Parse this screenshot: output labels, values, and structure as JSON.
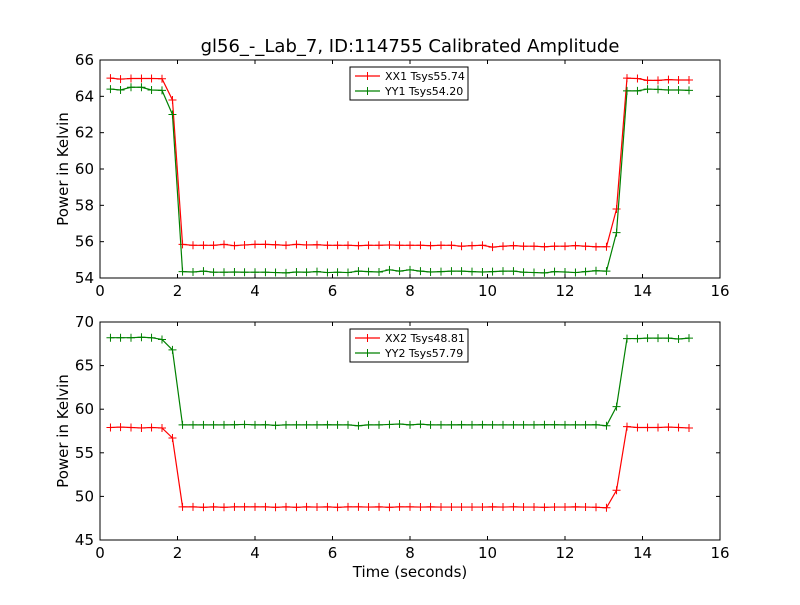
{
  "title": "gl56_-_Lab_7, ID:114755 Calibrated Amplitude",
  "colors": {
    "red": "#ff0000",
    "green": "#008000",
    "axes": "#000000",
    "background": "#ffffff"
  },
  "chart_data": [
    {
      "type": "line",
      "title": "gl56_-_Lab_7, ID:114755 Calibrated Amplitude",
      "xlabel": "",
      "ylabel": "Power in Kelvin",
      "xlim": [
        0,
        16
      ],
      "ylim": [
        54,
        66
      ],
      "xticks": [
        0,
        2,
        4,
        6,
        8,
        10,
        12,
        14,
        16
      ],
      "yticks": [
        54,
        56,
        58,
        60,
        62,
        64,
        66
      ],
      "grid": false,
      "legend": "top-center",
      "x": [
        0.27,
        0.53,
        0.8,
        1.07,
        1.33,
        1.6,
        1.87,
        2.13,
        2.4,
        2.67,
        2.93,
        3.2,
        3.47,
        3.73,
        4.0,
        4.27,
        4.53,
        4.8,
        5.07,
        5.33,
        5.6,
        5.87,
        6.13,
        6.4,
        6.67,
        6.93,
        7.2,
        7.47,
        7.73,
        8.0,
        8.27,
        8.53,
        8.8,
        9.07,
        9.33,
        9.6,
        9.87,
        10.13,
        10.4,
        10.67,
        10.93,
        11.2,
        11.47,
        11.73,
        12.0,
        12.27,
        12.53,
        12.8,
        13.07,
        13.33,
        13.6,
        13.87,
        14.13,
        14.4,
        14.67,
        14.93,
        15.2
      ],
      "series": [
        {
          "name": "XX1 Tsys55.74",
          "color": "#ff0000",
          "values": [
            65.0,
            64.95,
            64.98,
            64.98,
            64.98,
            64.97,
            63.8,
            55.85,
            55.8,
            55.8,
            55.8,
            55.85,
            55.78,
            55.82,
            55.85,
            55.85,
            55.83,
            55.8,
            55.85,
            55.82,
            55.83,
            55.8,
            55.8,
            55.8,
            55.78,
            55.8,
            55.8,
            55.82,
            55.8,
            55.8,
            55.8,
            55.78,
            55.8,
            55.8,
            55.75,
            55.78,
            55.8,
            55.7,
            55.75,
            55.78,
            55.75,
            55.75,
            55.72,
            55.75,
            55.75,
            55.78,
            55.75,
            55.72,
            55.72,
            57.8,
            65.0,
            64.98,
            64.88,
            64.88,
            64.92,
            64.9,
            64.9
          ]
        },
        {
          "name": "YY1 Tsys54.20",
          "color": "#008000",
          "values": [
            64.4,
            64.35,
            64.5,
            64.5,
            64.35,
            64.33,
            63.0,
            54.35,
            54.33,
            54.38,
            54.32,
            54.32,
            54.33,
            54.32,
            54.32,
            54.32,
            54.3,
            54.28,
            54.33,
            54.32,
            54.35,
            54.3,
            54.32,
            54.3,
            54.38,
            54.35,
            54.33,
            54.45,
            54.38,
            54.45,
            54.38,
            54.33,
            54.35,
            54.38,
            54.38,
            54.35,
            54.33,
            54.35,
            54.38,
            54.38,
            54.32,
            54.3,
            54.28,
            54.35,
            54.33,
            54.3,
            54.35,
            54.4,
            54.38,
            56.5,
            64.3,
            64.3,
            64.4,
            64.38,
            64.35,
            64.35,
            64.33
          ]
        }
      ]
    },
    {
      "type": "line",
      "title": "",
      "xlabel": "Time (seconds)",
      "ylabel": "Power in Kelvin",
      "xlim": [
        0,
        16
      ],
      "ylim": [
        45,
        70
      ],
      "xticks": [
        0,
        2,
        4,
        6,
        8,
        10,
        12,
        14,
        16
      ],
      "yticks": [
        45,
        50,
        55,
        60,
        65,
        70
      ],
      "grid": false,
      "legend": "top-center",
      "x": [
        0.27,
        0.53,
        0.8,
        1.07,
        1.33,
        1.6,
        1.87,
        2.13,
        2.4,
        2.67,
        2.93,
        3.2,
        3.47,
        3.73,
        4.0,
        4.27,
        4.53,
        4.8,
        5.07,
        5.33,
        5.6,
        5.87,
        6.13,
        6.4,
        6.67,
        6.93,
        7.2,
        7.47,
        7.73,
        8.0,
        8.27,
        8.53,
        8.8,
        9.07,
        9.33,
        9.6,
        9.87,
        10.13,
        10.4,
        10.67,
        10.93,
        11.2,
        11.47,
        11.73,
        12.0,
        12.27,
        12.53,
        12.8,
        13.07,
        13.33,
        13.6,
        13.87,
        14.13,
        14.4,
        14.67,
        14.93,
        15.2
      ],
      "series": [
        {
          "name": "XX2 Tsys48.81",
          "color": "#ff0000",
          "values": [
            57.9,
            57.95,
            57.9,
            57.85,
            57.9,
            57.85,
            56.7,
            48.8,
            48.8,
            48.75,
            48.8,
            48.75,
            48.8,
            48.8,
            48.8,
            48.8,
            48.75,
            48.8,
            48.75,
            48.8,
            48.78,
            48.8,
            48.75,
            48.8,
            48.8,
            48.78,
            48.8,
            48.75,
            48.8,
            48.8,
            48.78,
            48.8,
            48.78,
            48.78,
            48.78,
            48.78,
            48.78,
            48.8,
            48.78,
            48.8,
            48.78,
            48.78,
            48.75,
            48.78,
            48.78,
            48.8,
            48.78,
            48.75,
            48.7,
            50.7,
            58.0,
            57.9,
            57.9,
            57.9,
            57.95,
            57.9,
            57.85
          ]
        },
        {
          "name": "YY2 Tsys57.79",
          "color": "#008000",
          "values": [
            68.2,
            68.2,
            68.2,
            68.25,
            68.2,
            68.0,
            66.8,
            58.2,
            58.2,
            58.2,
            58.2,
            58.2,
            58.22,
            58.25,
            58.2,
            58.22,
            58.15,
            58.2,
            58.2,
            58.2,
            58.2,
            58.22,
            58.2,
            58.2,
            58.1,
            58.2,
            58.2,
            58.25,
            58.3,
            58.2,
            58.28,
            58.2,
            58.2,
            58.2,
            58.22,
            58.2,
            58.22,
            58.2,
            58.2,
            58.2,
            58.2,
            58.2,
            58.22,
            58.22,
            58.2,
            58.2,
            58.2,
            58.22,
            58.1,
            60.3,
            68.1,
            68.1,
            68.15,
            68.15,
            68.15,
            68.05,
            68.15
          ]
        }
      ]
    }
  ]
}
